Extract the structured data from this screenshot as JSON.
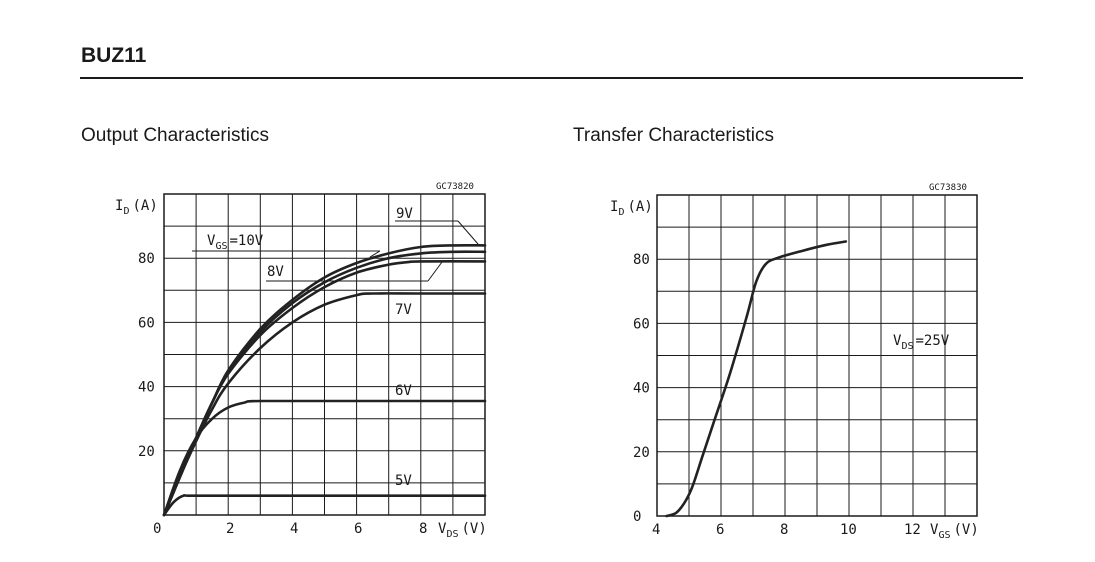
{
  "document": {
    "title": "BUZ11"
  },
  "charts": {
    "left_title": "Output Characteristics",
    "right_title": "Transfer Characteristics"
  },
  "chart_data": [
    {
      "type": "line",
      "title": "Output Characteristics",
      "code": "GC73820",
      "xlabel": {
        "main": "V",
        "sub": "DS",
        "unit": "(V)"
      },
      "ylabel": {
        "main": "I",
        "sub": "D",
        "unit": "(A)"
      },
      "xlim": [
        0,
        10
      ],
      "ylim": [
        0,
        100
      ],
      "xticks": [
        "0",
        "2",
        "4",
        "6",
        "8"
      ],
      "yticks": [
        "20",
        "40",
        "60",
        "80"
      ],
      "grid": true,
      "series": [
        {
          "name": "5V",
          "points": [
            [
              0,
              0
            ],
            [
              0.3,
              4
            ],
            [
              0.6,
              6
            ],
            [
              1,
              6
            ],
            [
              4,
              6
            ],
            [
              8,
              6
            ],
            [
              10,
              6
            ]
          ]
        },
        {
          "name": "6V",
          "points": [
            [
              0,
              0
            ],
            [
              0.5,
              14
            ],
            [
              1,
              24
            ],
            [
              1.5,
              30
            ],
            [
              2,
              33.5
            ],
            [
              2.5,
              35
            ],
            [
              3,
              35.5
            ],
            [
              6,
              35.5
            ],
            [
              10,
              35.5
            ]
          ]
        },
        {
          "name": "7V",
          "points": [
            [
              0,
              0
            ],
            [
              0.5,
              12
            ],
            [
              1,
              23
            ],
            [
              1.5,
              33
            ],
            [
              2,
              41
            ],
            [
              3,
              52
            ],
            [
              4,
              60
            ],
            [
              5,
              65.5
            ],
            [
              6,
              68.5
            ],
            [
              6.5,
              69
            ],
            [
              8,
              69
            ],
            [
              10,
              69
            ]
          ]
        },
        {
          "name": "8V",
          "points": [
            [
              0,
              0
            ],
            [
              0.5,
              12
            ],
            [
              1,
              24
            ],
            [
              1.5,
              35
            ],
            [
              2,
              44
            ],
            [
              3,
              56
            ],
            [
              4,
              64.5
            ],
            [
              5,
              71
            ],
            [
              6,
              75.5
            ],
            [
              7,
              78
            ],
            [
              7.6,
              78.8
            ],
            [
              8,
              79
            ],
            [
              10,
              79
            ]
          ]
        },
        {
          "name": "9V",
          "points": [
            [
              0,
              0
            ],
            [
              0.5,
              12
            ],
            [
              1,
              24
            ],
            [
              1.5,
              35
            ],
            [
              2,
              44.5
            ],
            [
              3,
              57
            ],
            [
              4,
              66
            ],
            [
              5,
              72.5
            ],
            [
              6,
              77
            ],
            [
              7,
              80
            ],
            [
              8,
              81.5
            ],
            [
              9,
              82
            ],
            [
              10,
              82
            ]
          ]
        },
        {
          "name": "VGS=10V",
          "points": [
            [
              0,
              0
            ],
            [
              0.5,
              12
            ],
            [
              1,
              24
            ],
            [
              1.5,
              35
            ],
            [
              2,
              45
            ],
            [
              3,
              58
            ],
            [
              4,
              67
            ],
            [
              5,
              74
            ],
            [
              6,
              78.5
            ],
            [
              7,
              81.5
            ],
            [
              8,
              83.5
            ],
            [
              9,
              84
            ],
            [
              10,
              84
            ]
          ]
        }
      ],
      "curve_labels": {
        "v5": "5V",
        "v6": "6V",
        "v7": "7V",
        "v8": "8V",
        "v9": "9V",
        "v10_main": "V",
        "v10_sub": "GS",
        "v10_val": "=10V"
      }
    },
    {
      "type": "line",
      "title": "Transfer Characteristics",
      "code": "GC73830",
      "xlabel": {
        "main": "V",
        "sub": "GS",
        "unit": "(V)"
      },
      "ylabel": {
        "main": "I",
        "sub": "D",
        "unit": "(A)"
      },
      "xlim": [
        4,
        14
      ],
      "ylim": [
        0,
        100
      ],
      "xticks": [
        "4",
        "6",
        "8",
        "10",
        "12"
      ],
      "yticks": [
        "0",
        "20",
        "40",
        "60",
        "80"
      ],
      "grid": true,
      "annotation": {
        "main": "V",
        "sub": "DS",
        "val": "=25V"
      },
      "series": [
        {
          "name": "VDS=25V",
          "points": [
            [
              4.3,
              0
            ],
            [
              4.6,
              1
            ],
            [
              4.85,
              4
            ],
            [
              5.1,
              9
            ],
            [
              5.4,
              18
            ],
            [
              5.8,
              30
            ],
            [
              6.3,
              45
            ],
            [
              6.8,
              62
            ],
            [
              7.1,
              73
            ],
            [
              7.4,
              78.5
            ],
            [
              7.8,
              80.5
            ],
            [
              8.5,
              82.5
            ],
            [
              9.3,
              84.5
            ],
            [
              9.9,
              85.5
            ]
          ]
        }
      ]
    }
  ]
}
